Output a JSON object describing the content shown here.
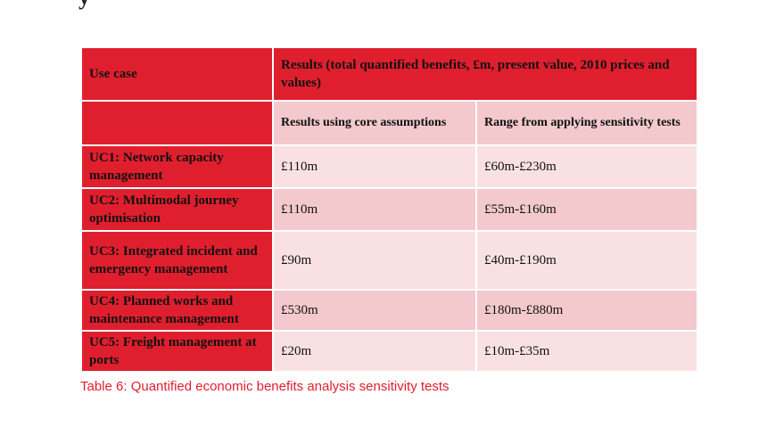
{
  "table": {
    "header": {
      "use_case": "Use case",
      "results": "Results (total quantified benefits, £m, present value, 2010 prices and values)"
    },
    "subheader": {
      "core": "Results using core assumptions",
      "range": "Range from applying sensitivity tests"
    },
    "rows": [
      {
        "use_case": "UC1: Network capacity management",
        "core": "£110m",
        "range": "£60m-£230m"
      },
      {
        "use_case": "UC2: Multimodal journey optimisation",
        "core": "£110m",
        "range": "£55m-£160m"
      },
      {
        "use_case": "UC3: Integrated incident and emergency management",
        "core": "£90m",
        "range": "£40m-£190m"
      },
      {
        "use_case": "UC4: Planned works and maintenance management",
        "core": "£530m",
        "range": "£180m-£880m"
      },
      {
        "use_case": "UC5: Freight management at ports",
        "core": "£20m",
        "range": "£10m-£35m"
      }
    ]
  },
  "caption": "Table 6: Quantified economic benefits analysis sensitivity tests"
}
